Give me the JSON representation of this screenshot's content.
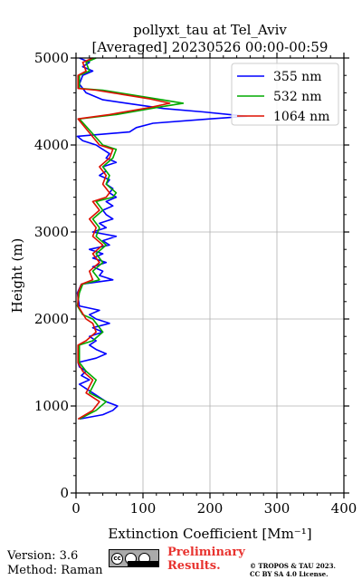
{
  "chart_data": {
    "type": "line",
    "title": "pollyxt_tau at Tel_Aviv",
    "subtitle": "[Averaged] 20230526 00:00-00:59",
    "xlabel": "Extinction Coefficient [Mm⁻¹]",
    "ylabel": "Height (m)",
    "xlim": [
      0,
      400
    ],
    "ylim": [
      0,
      5000
    ],
    "xticks": [
      "0",
      "100",
      "200",
      "300",
      "400"
    ],
    "yticks": [
      "0",
      "1000",
      "2000",
      "3000",
      "4000",
      "5000"
    ],
    "grid": true,
    "legend_position": "top-right",
    "series": [
      {
        "name": "355 nm",
        "color": "#0000ff",
        "points": [
          [
            5,
            850
          ],
          [
            40,
            900
          ],
          [
            55,
            950
          ],
          [
            62,
            1000
          ],
          [
            45,
            1050
          ],
          [
            35,
            1100
          ],
          [
            25,
            1150
          ],
          [
            15,
            1200
          ],
          [
            5,
            1250
          ],
          [
            20,
            1300
          ],
          [
            8,
            1350
          ],
          [
            15,
            1400
          ],
          [
            5,
            1450
          ],
          [
            3,
            1500
          ],
          [
            30,
            1550
          ],
          [
            45,
            1600
          ],
          [
            30,
            1650
          ],
          [
            20,
            1700
          ],
          [
            30,
            1750
          ],
          [
            20,
            1800
          ],
          [
            40,
            1850
          ],
          [
            25,
            1900
          ],
          [
            50,
            1950
          ],
          [
            30,
            2000
          ],
          [
            20,
            2050
          ],
          [
            35,
            2100
          ],
          [
            5,
            2150
          ],
          [
            2,
            2300
          ],
          [
            8,
            2400
          ],
          [
            55,
            2450
          ],
          [
            35,
            2500
          ],
          [
            40,
            2550
          ],
          [
            25,
            2600
          ],
          [
            45,
            2650
          ],
          [
            25,
            2700
          ],
          [
            40,
            2750
          ],
          [
            20,
            2800
          ],
          [
            50,
            2850
          ],
          [
            40,
            2900
          ],
          [
            60,
            2950
          ],
          [
            25,
            3000
          ],
          [
            45,
            3050
          ],
          [
            35,
            3100
          ],
          [
            55,
            3150
          ],
          [
            45,
            3200
          ],
          [
            40,
            3250
          ],
          [
            55,
            3300
          ],
          [
            45,
            3350
          ],
          [
            60,
            3400
          ],
          [
            50,
            3450
          ],
          [
            55,
            3500
          ],
          [
            45,
            3550
          ],
          [
            50,
            3600
          ],
          [
            35,
            3650
          ],
          [
            45,
            3700
          ],
          [
            40,
            3750
          ],
          [
            60,
            3800
          ],
          [
            45,
            3850
          ],
          [
            50,
            3900
          ],
          [
            40,
            3950
          ],
          [
            30,
            4000
          ],
          [
            10,
            4050
          ],
          [
            2,
            4100
          ],
          [
            80,
            4150
          ],
          [
            90,
            4200
          ],
          [
            115,
            4250
          ],
          [
            200,
            4300
          ],
          [
            255,
            4330
          ],
          [
            190,
            4380
          ],
          [
            130,
            4420
          ],
          [
            85,
            4470
          ],
          [
            40,
            4520
          ],
          [
            15,
            4600
          ],
          [
            5,
            4700
          ],
          [
            10,
            4800
          ],
          [
            25,
            4850
          ],
          [
            10,
            4900
          ],
          [
            20,
            4950
          ],
          [
            5,
            5000
          ]
        ]
      },
      {
        "name": "532 nm",
        "color": "#00aa00",
        "points": [
          [
            5,
            850
          ],
          [
            30,
            950
          ],
          [
            45,
            1050
          ],
          [
            20,
            1150
          ],
          [
            30,
            1300
          ],
          [
            15,
            1400
          ],
          [
            5,
            1500
          ],
          [
            5,
            1700
          ],
          [
            25,
            1750
          ],
          [
            40,
            1850
          ],
          [
            30,
            1950
          ],
          [
            25,
            2000
          ],
          [
            10,
            2050
          ],
          [
            2,
            2150
          ],
          [
            5,
            2300
          ],
          [
            10,
            2400
          ],
          [
            35,
            2450
          ],
          [
            25,
            2550
          ],
          [
            40,
            2650
          ],
          [
            30,
            2750
          ],
          [
            45,
            2850
          ],
          [
            30,
            2950
          ],
          [
            35,
            3050
          ],
          [
            25,
            3150
          ],
          [
            40,
            3250
          ],
          [
            30,
            3350
          ],
          [
            55,
            3400
          ],
          [
            60,
            3450
          ],
          [
            45,
            3550
          ],
          [
            50,
            3650
          ],
          [
            40,
            3750
          ],
          [
            55,
            3850
          ],
          [
            60,
            3950
          ],
          [
            40,
            4000
          ],
          [
            5,
            4300
          ],
          [
            60,
            4350
          ],
          [
            120,
            4430
          ],
          [
            160,
            4480
          ],
          [
            120,
            4530
          ],
          [
            80,
            4580
          ],
          [
            40,
            4630
          ],
          [
            5,
            4650
          ],
          [
            5,
            4800
          ],
          [
            20,
            4850
          ],
          [
            15,
            4950
          ],
          [
            30,
            5000
          ]
        ]
      },
      {
        "name": "1064 nm",
        "color": "#dd1100",
        "points": [
          [
            3,
            850
          ],
          [
            25,
            950
          ],
          [
            35,
            1050
          ],
          [
            15,
            1150
          ],
          [
            25,
            1300
          ],
          [
            10,
            1400
          ],
          [
            3,
            1500
          ],
          [
            3,
            1700
          ],
          [
            15,
            1750
          ],
          [
            30,
            1850
          ],
          [
            25,
            1950
          ],
          [
            15,
            2000
          ],
          [
            3,
            2150
          ],
          [
            3,
            2300
          ],
          [
            8,
            2400
          ],
          [
            25,
            2450
          ],
          [
            20,
            2550
          ],
          [
            35,
            2650
          ],
          [
            25,
            2750
          ],
          [
            40,
            2850
          ],
          [
            25,
            2950
          ],
          [
            30,
            3050
          ],
          [
            20,
            3150
          ],
          [
            35,
            3250
          ],
          [
            25,
            3350
          ],
          [
            45,
            3400
          ],
          [
            50,
            3450
          ],
          [
            40,
            3550
          ],
          [
            45,
            3650
          ],
          [
            35,
            3750
          ],
          [
            50,
            3850
          ],
          [
            55,
            3950
          ],
          [
            35,
            4000
          ],
          [
            3,
            4300
          ],
          [
            50,
            4350
          ],
          [
            110,
            4430
          ],
          [
            140,
            4480
          ],
          [
            110,
            4530
          ],
          [
            70,
            4580
          ],
          [
            30,
            4630
          ],
          [
            3,
            4650
          ],
          [
            3,
            4800
          ],
          [
            15,
            4850
          ],
          [
            10,
            4950
          ],
          [
            25,
            5000
          ]
        ]
      }
    ]
  },
  "footer": {
    "version": "Version: 3.6",
    "method": "Method: Raman",
    "preliminary_line1": "Preliminary",
    "preliminary_line2": "Results.",
    "copyright_line1": "© TROPOS & TAU 2023.",
    "copyright_line2": "CC BY SA 4.0 License.",
    "license_badge_text": "cc",
    "license_by": "BY",
    "license_sa": "SA"
  }
}
